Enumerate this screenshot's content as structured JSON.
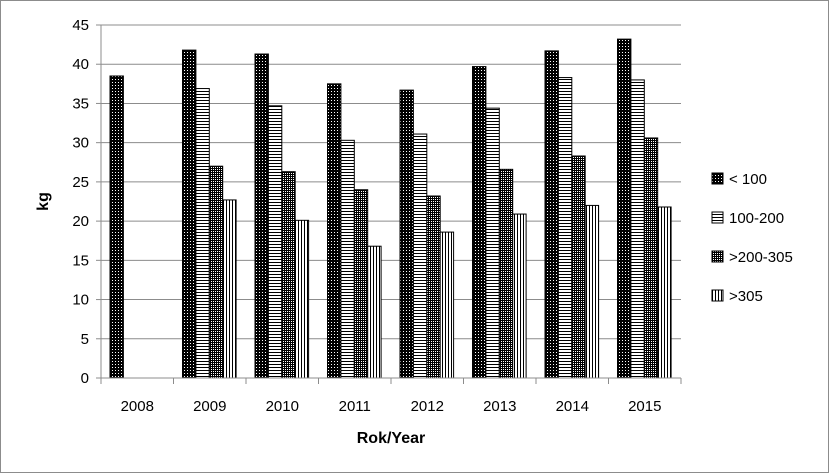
{
  "chart_data": {
    "type": "bar",
    "title": "",
    "xlabel": "Rok/Year",
    "ylabel": "kg",
    "ylim": [
      0,
      45
    ],
    "ytick_step": 5,
    "grid": true,
    "legend_position": "right",
    "categories": [
      "2008",
      "2009",
      "2010",
      "2011",
      "2012",
      "2013",
      "2014",
      "2015"
    ],
    "series": [
      {
        "name": "< 100",
        "pattern": "dense-dots",
        "values": [
          38.5,
          41.8,
          41.3,
          37.5,
          36.7,
          39.7,
          41.7,
          43.2
        ]
      },
      {
        "name": "100-200",
        "pattern": "horizontal-lines",
        "values": [
          null,
          36.9,
          34.7,
          30.3,
          31.1,
          34.4,
          38.3,
          38.0
        ]
      },
      {
        "name": ">200-305",
        "pattern": "checker",
        "values": [
          null,
          27.0,
          26.3,
          24.0,
          23.2,
          26.6,
          28.3,
          30.6
        ]
      },
      {
        "name": ">305",
        "pattern": "vertical-lines",
        "values": [
          null,
          22.7,
          20.1,
          16.8,
          18.6,
          20.9,
          22.0,
          21.8
        ]
      }
    ]
  }
}
